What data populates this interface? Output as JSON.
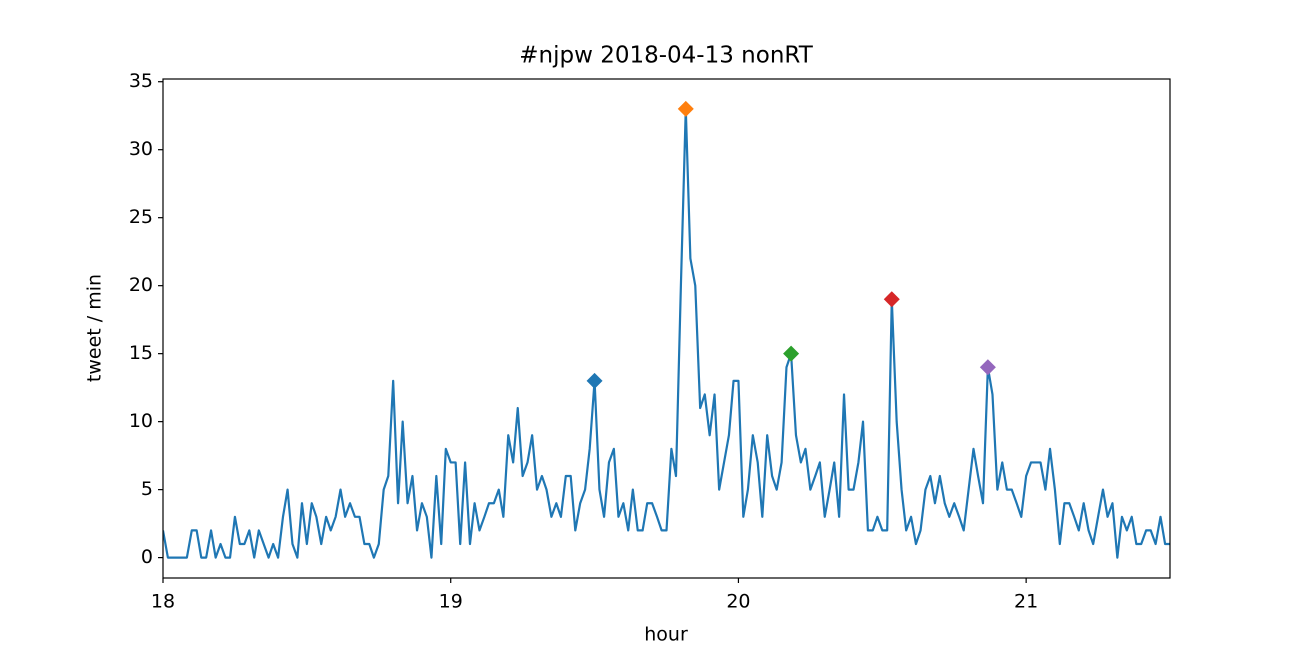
{
  "chart_data": {
    "type": "line",
    "title": "#njpw 2018-04-13 nonRT",
    "xlabel": "hour",
    "ylabel": "tweet / min",
    "x": [
      18,
      18.017,
      18.033,
      18.05,
      18.067,
      18.083,
      18.1,
      18.117,
      18.133,
      18.15,
      18.167,
      18.183,
      18.2,
      18.217,
      18.233,
      18.25,
      18.267,
      18.283,
      18.3,
      18.317,
      18.333,
      18.35,
      18.367,
      18.383,
      18.4,
      18.417,
      18.433,
      18.45,
      18.467,
      18.483,
      18.5,
      18.517,
      18.533,
      18.55,
      18.567,
      18.583,
      18.6,
      18.617,
      18.633,
      18.65,
      18.667,
      18.683,
      18.7,
      18.717,
      18.733,
      18.75,
      18.767,
      18.783,
      18.8,
      18.817,
      18.833,
      18.85,
      18.867,
      18.883,
      18.9,
      18.917,
      18.933,
      18.95,
      18.967,
      18.983,
      19,
      19.017,
      19.033,
      19.05,
      19.067,
      19.083,
      19.1,
      19.117,
      19.133,
      19.15,
      19.167,
      19.183,
      19.2,
      19.217,
      19.233,
      19.25,
      19.267,
      19.283,
      19.3,
      19.317,
      19.333,
      19.35,
      19.367,
      19.383,
      19.4,
      19.417,
      19.433,
      19.45,
      19.467,
      19.483,
      19.5,
      19.517,
      19.533,
      19.55,
      19.567,
      19.583,
      19.6,
      19.617,
      19.633,
      19.65,
      19.667,
      19.683,
      19.7,
      19.717,
      19.733,
      19.75,
      19.767,
      19.783,
      19.8,
      19.817,
      19.833,
      19.85,
      19.867,
      19.883,
      19.9,
      19.917,
      19.933,
      19.95,
      19.967,
      19.983,
      20,
      20.017,
      20.033,
      20.05,
      20.067,
      20.083,
      20.1,
      20.117,
      20.133,
      20.15,
      20.167,
      20.183,
      20.2,
      20.217,
      20.233,
      20.25,
      20.267,
      20.283,
      20.3,
      20.317,
      20.333,
      20.35,
      20.367,
      20.383,
      20.4,
      20.417,
      20.433,
      20.45,
      20.467,
      20.483,
      20.5,
      20.517,
      20.533,
      20.55,
      20.567,
      20.583,
      20.6,
      20.617,
      20.633,
      20.65,
      20.667,
      20.683,
      20.7,
      20.717,
      20.733,
      20.75,
      20.767,
      20.783,
      20.8,
      20.817,
      20.833,
      20.85,
      20.867,
      20.883,
      20.9,
      20.917,
      20.933,
      20.95,
      20.967,
      20.983,
      21,
      21.017,
      21.033,
      21.05,
      21.067,
      21.083,
      21.1,
      21.117,
      21.133,
      21.15,
      21.167,
      21.183,
      21.2,
      21.217,
      21.233,
      21.25,
      21.267,
      21.283,
      21.3,
      21.317,
      21.333,
      21.35,
      21.367,
      21.383,
      21.4,
      21.417,
      21.433,
      21.45,
      21.467,
      21.483,
      21.5
    ],
    "series": [
      {
        "color": "#1f77b4",
        "values": [
          2,
          0,
          0,
          0,
          0,
          0,
          2,
          2,
          0,
          0,
          2,
          0,
          1,
          0,
          0,
          3,
          1,
          1,
          2,
          0,
          2,
          1,
          0,
          1,
          0,
          3,
          5,
          1,
          0,
          4,
          1,
          4,
          3,
          1,
          3,
          2,
          3,
          5,
          3,
          4,
          3,
          3,
          1,
          1,
          0,
          1,
          5,
          6,
          13,
          4,
          10,
          4,
          6,
          2,
          4,
          3,
          0,
          6,
          1,
          8,
          7,
          7,
          1,
          7,
          1,
          4,
          2,
          3,
          4,
          4,
          5,
          3,
          9,
          7,
          11,
          6,
          7,
          9,
          5,
          6,
          5,
          3,
          4,
          3,
          6,
          6,
          2,
          4,
          5,
          8,
          13,
          5,
          3,
          7,
          8,
          3,
          4,
          2,
          5,
          2,
          2,
          4,
          4,
          3,
          2,
          2,
          8,
          6,
          20,
          33,
          22,
          20,
          11,
          12,
          9,
          12,
          5,
          7,
          9,
          13,
          13,
          3,
          5,
          9,
          7,
          3,
          9,
          6,
          5,
          7,
          14,
          15,
          9,
          7,
          8,
          5,
          6,
          7,
          3,
          5,
          7,
          3,
          12,
          5,
          5,
          7,
          10,
          2,
          2,
          3,
          2,
          2,
          19,
          10,
          5,
          2,
          3,
          1,
          2,
          5,
          6,
          4,
          6,
          4,
          3,
          4,
          3,
          2,
          5,
          8,
          6,
          4,
          14,
          12,
          5,
          7,
          5,
          5,
          4,
          3,
          6,
          7,
          7,
          7,
          5,
          8,
          5,
          1,
          4,
          4,
          3,
          2,
          4,
          2,
          1,
          3,
          5,
          3,
          4,
          0,
          3,
          2,
          3,
          1,
          1,
          2,
          2,
          1,
          3,
          1,
          1
        ]
      }
    ],
    "markers": [
      {
        "x": 19.5,
        "value": 13,
        "color": "#1f77b4"
      },
      {
        "x": 19.817,
        "value": 33,
        "color": "#ff7f0e"
      },
      {
        "x": 20.183,
        "value": 15,
        "color": "#2ca02c"
      },
      {
        "x": 20.533,
        "value": 19,
        "color": "#d62728"
      },
      {
        "x": 20.867,
        "value": 14,
        "color": "#9467bd"
      }
    ],
    "xlim": [
      18,
      21.5
    ],
    "xticks": [
      18,
      19,
      20,
      21
    ],
    "ylim": [
      -1.5,
      35.2
    ],
    "yticks": [
      0,
      5,
      10,
      15,
      20,
      25,
      30,
      35
    ],
    "grid": false
  }
}
